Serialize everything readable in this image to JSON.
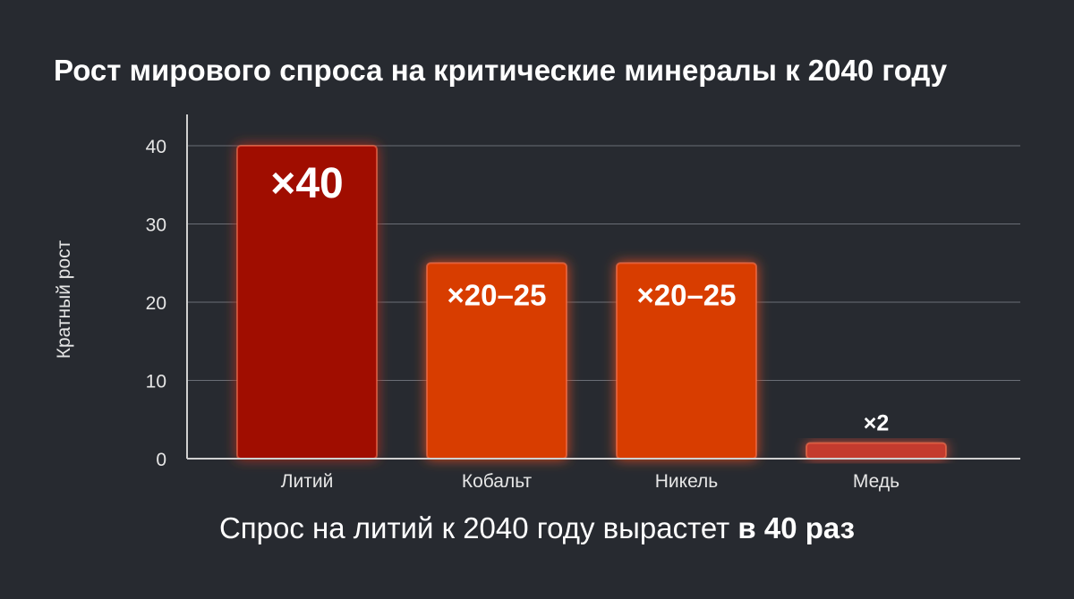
{
  "chart_data": {
    "type": "bar",
    "title": "Рост мирового спроса на критические минералы к 2040 году",
    "ylabel": "Кратный рост",
    "xlabel": "",
    "ylim": [
      0,
      42
    ],
    "yticks": [
      "0",
      "10",
      "20",
      "30",
      "40"
    ],
    "grid": true,
    "categories": [
      "Литий",
      "Кобальт",
      "Никель",
      "Медь"
    ],
    "values": [
      40,
      25,
      25,
      2
    ],
    "data_labels": [
      "×40",
      "×20–25",
      "×20–25",
      "×2"
    ],
    "colors": [
      "#a00a04",
      "#d83d06",
      "#d83d06",
      "#c43a2e"
    ]
  },
  "caption": {
    "text": "Спрос на литий к 2040 году вырастет ",
    "emphasis": "в 40 раз"
  }
}
